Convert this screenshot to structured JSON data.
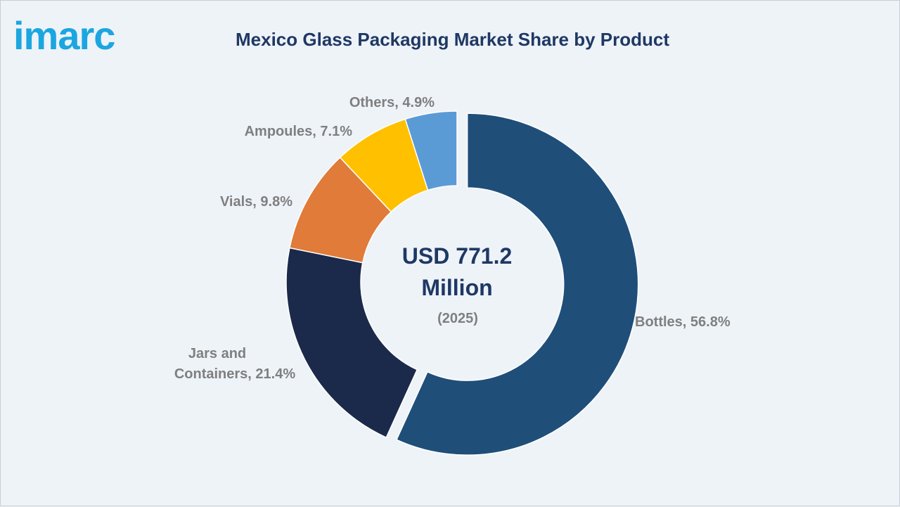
{
  "logo": {
    "text": "imarc"
  },
  "chart_data": {
    "type": "pie",
    "variant": "donut",
    "title": "Mexico Glass Packaging Market Share by Product",
    "center_text": {
      "line1": "USD 771.2",
      "line2": "Million",
      "line3": "(2025)"
    },
    "slices": [
      {
        "name": "Bottles",
        "value": 56.8,
        "label": "Bottles, 56.8%",
        "color": "#1f4e79",
        "exploded": true
      },
      {
        "name": "Jars and Containers",
        "value": 21.4,
        "label_lines": [
          "Jars and",
          "Containers, 21.4%"
        ],
        "color": "#1b2a4a"
      },
      {
        "name": "Vials",
        "value": 9.8,
        "label": "Vials, 9.8%",
        "color": "#e07b39"
      },
      {
        "name": "Ampoules",
        "value": 7.1,
        "label": "Ampoules, 7.1%",
        "color": "#ffc000"
      },
      {
        "name": "Others",
        "value": 4.9,
        "label": "Others, 4.9%",
        "color": "#5b9bd5"
      }
    ]
  }
}
